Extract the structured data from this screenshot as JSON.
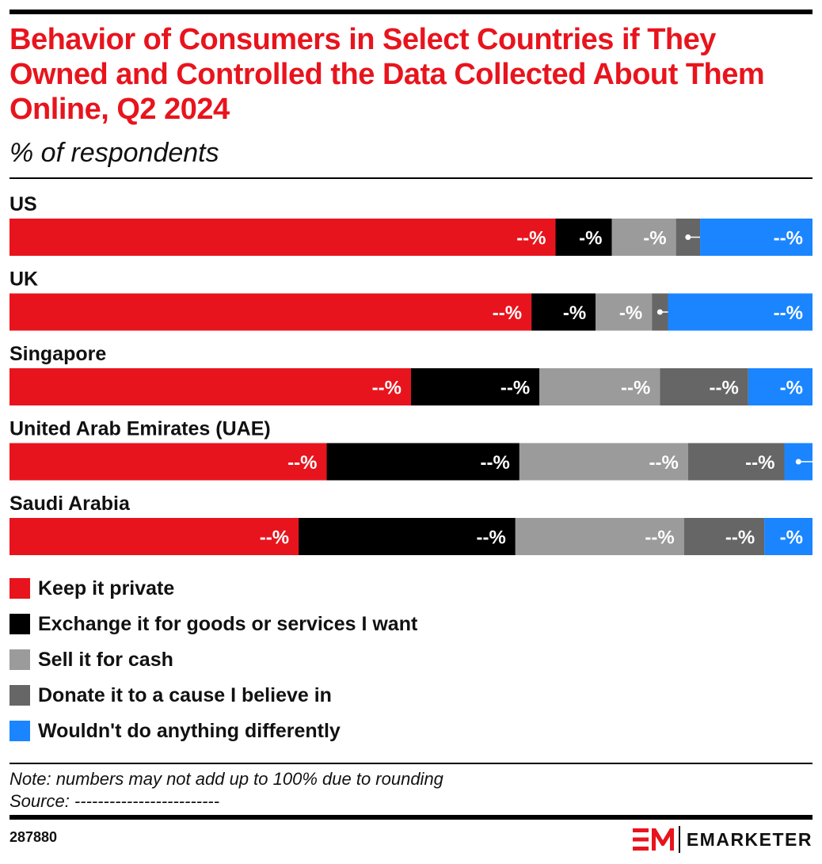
{
  "title": "Behavior of Consumers in Select Countries if They Owned and Controlled the Data Collected About Them Online, Q2 2024",
  "subtitle": "% of respondents",
  "chart_data": {
    "type": "bar",
    "orientation": "horizontal",
    "stacked": true,
    "categories": [
      "US",
      "UK",
      "Singapore",
      "United Arab Emirates (UAE)",
      "Saudi Arabia"
    ],
    "series": [
      {
        "name": "Keep it private",
        "color": "#e8141d",
        "values": [
          68,
          65,
          50,
          39.5,
          36
        ],
        "labels": [
          "--%",
          "--%",
          "--%",
          "--%",
          "--%"
        ]
      },
      {
        "name": "Exchange it for goods or services I want",
        "color": "#000000",
        "values": [
          7,
          8,
          16,
          24,
          27
        ],
        "labels": [
          "-%",
          "-%",
          "--%",
          "--%",
          "--%"
        ]
      },
      {
        "name": "Sell it for cash",
        "color": "#9b9b9b",
        "values": [
          8,
          7,
          15,
          21,
          21
        ],
        "labels": [
          "-%",
          "-%",
          "--%",
          "--%",
          "--%"
        ]
      },
      {
        "name": "Donate it to a cause I believe in",
        "color": "#666666",
        "values": [
          3,
          2,
          11,
          12,
          10
        ],
        "labels": [
          "--%",
          "--%",
          "--%",
          "--%",
          "--%"
        ]
      },
      {
        "name": "Wouldn't do anything differently",
        "color": "#1a85ff",
        "values": [
          14,
          18,
          8,
          3.5,
          6
        ],
        "labels": [
          "--%",
          "--%",
          "-%",
          "-%",
          "-%"
        ]
      }
    ],
    "xlim": [
      0,
      100
    ],
    "grid": false,
    "legend_position": "bottom"
  },
  "note": "Note: numbers may not add up to 100% due to rounding",
  "source": "Source: -------------------------",
  "chart_id": "287880",
  "logo": {
    "text": "EMARKETER",
    "color": "#e8141d"
  }
}
